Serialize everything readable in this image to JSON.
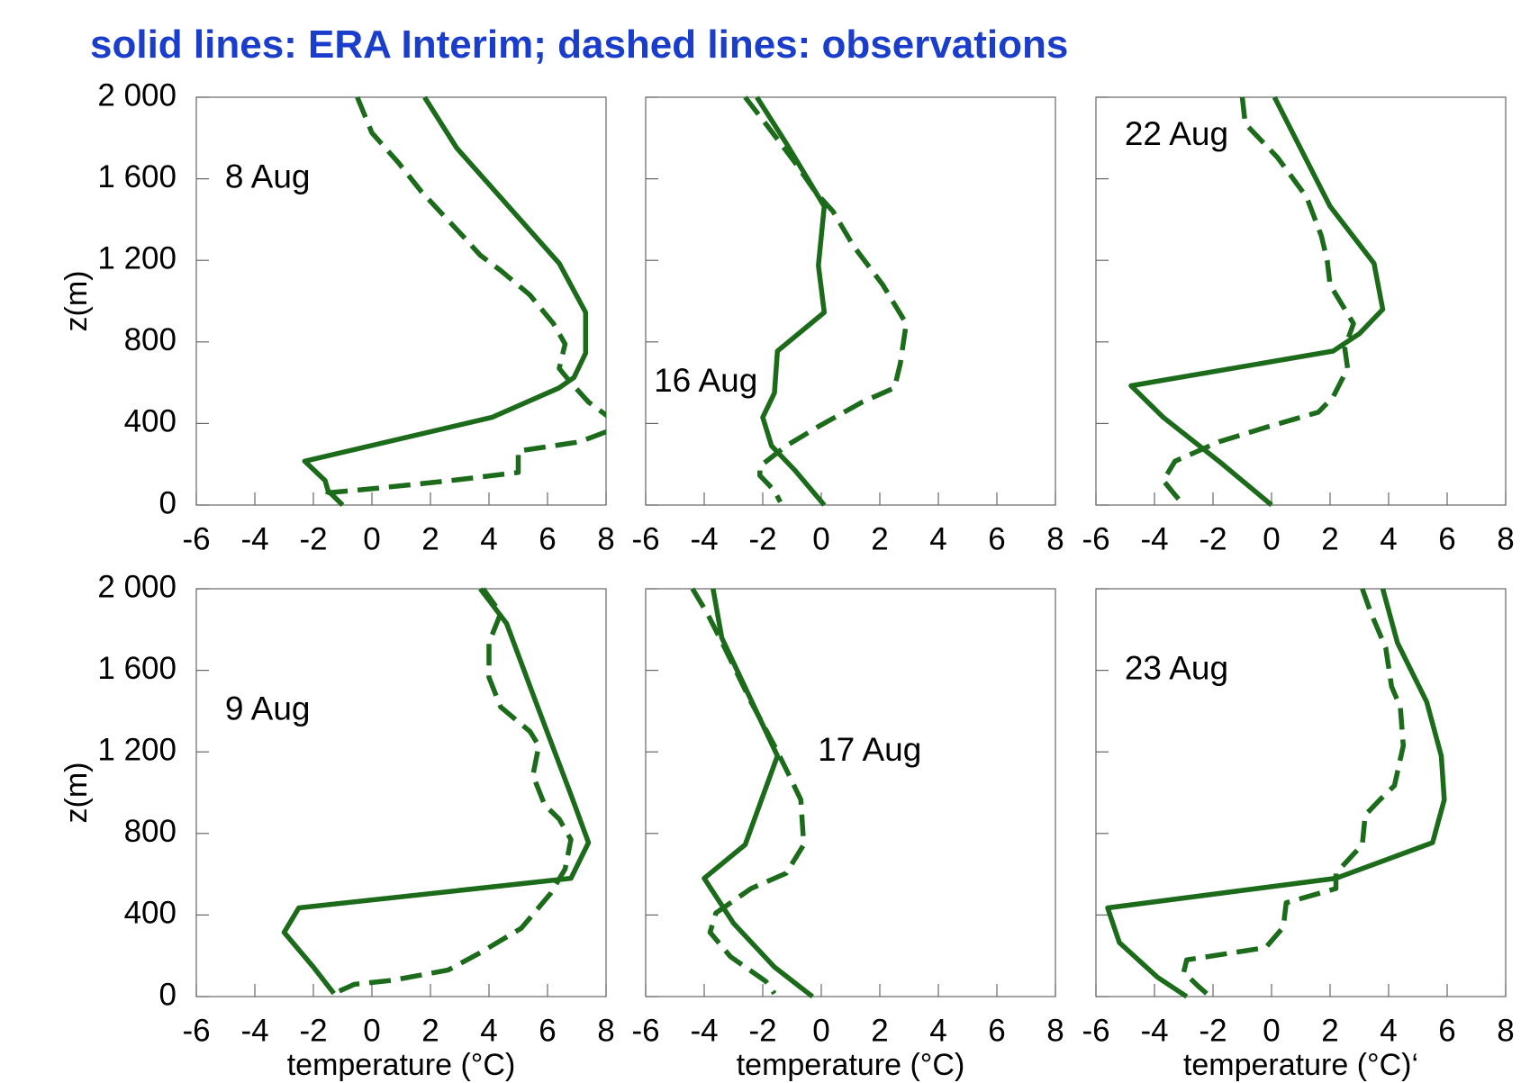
{
  "title": "solid lines: ERA Interim;   dashed lines: observations",
  "chart_data": [
    {
      "type": "line",
      "annotation": "8 Aug",
      "ylabel": "z(m)",
      "xlim": [
        -6,
        8
      ],
      "xticks": [
        -6,
        -4,
        -2,
        0,
        2,
        4,
        6,
        8
      ],
      "ylim": [
        0,
        2000
      ],
      "yticks": [
        0,
        400,
        800,
        {
          "value": 1200,
          "label": "1 200"
        },
        {
          "value": 1600,
          "label": "1 600"
        },
        {
          "value": 2000,
          "label": "2 000"
        }
      ],
      "series": [
        {
          "color": "#1b6b1b",
          "style": "solid",
          "x": [
            1.8,
            2.9,
            6.4,
            7.3,
            7.3,
            6.9,
            6.4,
            4.1,
            -2.3,
            -1.6,
            -1.5,
            -1.0
          ],
          "values": [
            2000,
            1750,
            1185,
            945,
            745,
            625,
            575,
            430,
            215,
            120,
            70,
            0
          ]
        },
        {
          "color": "#1b6b1b",
          "style": "dashed",
          "x": [
            -0.5,
            0.0,
            0.9,
            1.7,
            3.1,
            3.7,
            4.4,
            5.4,
            6.2,
            6.6,
            6.4,
            6.8,
            7.4,
            8.2,
            8.2,
            7.1,
            5.0,
            5.0,
            2.7,
            0.0,
            -1.5,
            -1.6
          ],
          "values": [
            2000,
            1825,
            1680,
            1535,
            1320,
            1225,
            1150,
            1030,
            890,
            790,
            670,
            600,
            505,
            420,
            370,
            310,
            265,
            160,
            120,
            80,
            60,
            25
          ]
        }
      ]
    },
    {
      "type": "line",
      "annotation": "16 Aug",
      "xlim": [
        -6,
        8
      ],
      "xticks": [
        -6,
        -4,
        -2,
        0,
        2,
        4,
        6,
        8
      ],
      "ylim": [
        0,
        2000
      ],
      "yticks": [
        0,
        400,
        800,
        1200,
        1600,
        2000
      ],
      "series": [
        {
          "color": "#1b6b1b",
          "style": "solid",
          "x": [
            -2.2,
            -1.2,
            0.1,
            -0.1,
            0.1,
            -1.5,
            -1.6,
            -2.0,
            -1.7,
            -0.9,
            0.1
          ],
          "values": [
            2000,
            1775,
            1465,
            1175,
            945,
            755,
            550,
            430,
            290,
            170,
            0
          ]
        },
        {
          "color": "#1b6b1b",
          "style": "dashed",
          "x": [
            -2.6,
            -1.9,
            -0.9,
            -0.2,
            0.4,
            1.1,
            2.1,
            2.9,
            2.7,
            2.5,
            1.4,
            -0.1,
            -1.2,
            -2.1,
            -2.1,
            -1.6,
            -1.4
          ],
          "values": [
            2000,
            1870,
            1680,
            1535,
            1440,
            1270,
            1080,
            890,
            695,
            575,
            505,
            385,
            290,
            190,
            145,
            70,
            15
          ]
        }
      ]
    },
    {
      "type": "line",
      "annotation": "22 Aug",
      "xlim": [
        -6,
        8
      ],
      "xticks": [
        -6,
        -4,
        -2,
        0,
        2,
        4,
        6,
        8
      ],
      "ylim": [
        0,
        2000
      ],
      "yticks": [
        0,
        400,
        800,
        1200,
        1600,
        2000
      ],
      "series": [
        {
          "color": "#1b6b1b",
          "style": "solid",
          "x": [
            0.1,
            2.0,
            3.5,
            3.8,
            3.0,
            2.1,
            -4.8,
            -3.7,
            -1.8,
            0.0
          ],
          "values": [
            2000,
            1465,
            1185,
            960,
            840,
            755,
            585,
            430,
            215,
            0
          ]
        },
        {
          "color": "#1b6b1b",
          "style": "dashed",
          "x": [
            -1.0,
            -0.9,
            0.2,
            1.2,
            1.7,
            1.9,
            2.0,
            2.4,
            2.8,
            2.5,
            2.6,
            2.1,
            1.6,
            -0.1,
            -1.8,
            -3.3,
            -3.7,
            -3.3,
            -3.0
          ],
          "values": [
            2000,
            1870,
            1705,
            1510,
            1320,
            1200,
            1080,
            985,
            890,
            770,
            670,
            530,
            455,
            385,
            310,
            215,
            120,
            50,
            0
          ]
        }
      ]
    },
    {
      "type": "line",
      "annotation": "9 Aug",
      "xlabel": "temperature (°C)",
      "ylabel": "z(m)",
      "xlim": [
        -6,
        8
      ],
      "xticks": [
        -6,
        -4,
        -2,
        0,
        2,
        4,
        6,
        8
      ],
      "ylim": [
        0,
        2000
      ],
      "yticks": [
        0,
        400,
        800,
        {
          "value": 1200,
          "label": "1 200"
        },
        {
          "value": 1600,
          "label": "1 600"
        },
        {
          "value": 2000,
          "label": "2 000"
        }
      ],
      "series": [
        {
          "color": "#1b6b1b",
          "style": "solid",
          "x": [
            3.7,
            4.6,
            5.6,
            6.8,
            7.4,
            6.8,
            -2.5,
            -3.0,
            -2.0,
            -1.3
          ],
          "values": [
            2000,
            1830,
            1445,
            990,
            755,
            580,
            435,
            315,
            145,
            15
          ]
        },
        {
          "color": "#1b6b1b",
          "style": "dashed",
          "x": [
            3.8,
            4.4,
            4.0,
            4.0,
            4.4,
            5.4,
            5.7,
            5.5,
            5.9,
            6.4,
            6.8,
            6.6,
            6.1,
            5.1,
            3.7,
            2.6,
            0.7,
            -0.6,
            -1.3
          ],
          "values": [
            2000,
            1880,
            1735,
            1565,
            1420,
            1300,
            1230,
            1085,
            940,
            870,
            770,
            625,
            505,
            335,
            215,
            130,
            80,
            60,
            15
          ]
        }
      ]
    },
    {
      "type": "line",
      "annotation": "17 Aug",
      "xlabel": "temperature (°C)",
      "xlim": [
        -6,
        8
      ],
      "xticks": [
        -6,
        -4,
        -2,
        0,
        2,
        4,
        6,
        8
      ],
      "ylim": [
        0,
        2000
      ],
      "yticks": [
        0,
        400,
        800,
        1200,
        1600,
        2000
      ],
      "series": [
        {
          "color": "#1b6b1b",
          "style": "solid",
          "x": [
            -3.7,
            -3.4,
            -1.5,
            -2.6,
            -4.0,
            -3.0,
            -1.6,
            -0.3
          ],
          "values": [
            2000,
            1760,
            1180,
            745,
            580,
            360,
            145,
            0
          ]
        },
        {
          "color": "#1b6b1b",
          "style": "dashed",
          "x": [
            -4.4,
            -3.9,
            -3.3,
            -2.4,
            -1.6,
            -1.1,
            -0.7,
            -0.6,
            -1.2,
            -2.4,
            -3.6,
            -3.8,
            -3.1,
            -1.9,
            -1.6
          ],
          "values": [
            2000,
            1880,
            1710,
            1445,
            1230,
            1085,
            965,
            745,
            605,
            530,
            410,
            315,
            195,
            75,
            15
          ]
        }
      ]
    },
    {
      "type": "line",
      "annotation": "23 Aug",
      "xlabel": "temperature (°C)‘",
      "xlim": [
        -6,
        8
      ],
      "xticks": [
        -6,
        -4,
        -2,
        0,
        2,
        4,
        6,
        8
      ],
      "ylim": [
        0,
        2000
      ],
      "yticks": [
        0,
        400,
        800,
        1200,
        1600,
        2000
      ],
      "series": [
        {
          "color": "#1b6b1b",
          "style": "solid",
          "x": [
            3.8,
            4.3,
            5.3,
            5.8,
            5.9,
            5.5,
            2.2,
            -5.6,
            -5.2,
            -3.9,
            -2.9
          ],
          "values": [
            2000,
            1735,
            1445,
            1180,
            965,
            755,
            580,
            435,
            265,
            95,
            0
          ]
        },
        {
          "color": "#1b6b1b",
          "style": "dashed",
          "x": [
            3.1,
            3.4,
            3.9,
            4.1,
            4.4,
            4.5,
            4.2,
            3.7,
            3.2,
            3.1,
            2.2,
            2.2,
            0.5,
            0.4,
            -0.2,
            -2.9,
            -3.0,
            -2.5,
            -2.1
          ],
          "values": [
            2000,
            1880,
            1710,
            1520,
            1420,
            1230,
            1035,
            965,
            890,
            745,
            605,
            530,
            460,
            340,
            240,
            180,
            120,
            50,
            0
          ]
        }
      ]
    }
  ]
}
